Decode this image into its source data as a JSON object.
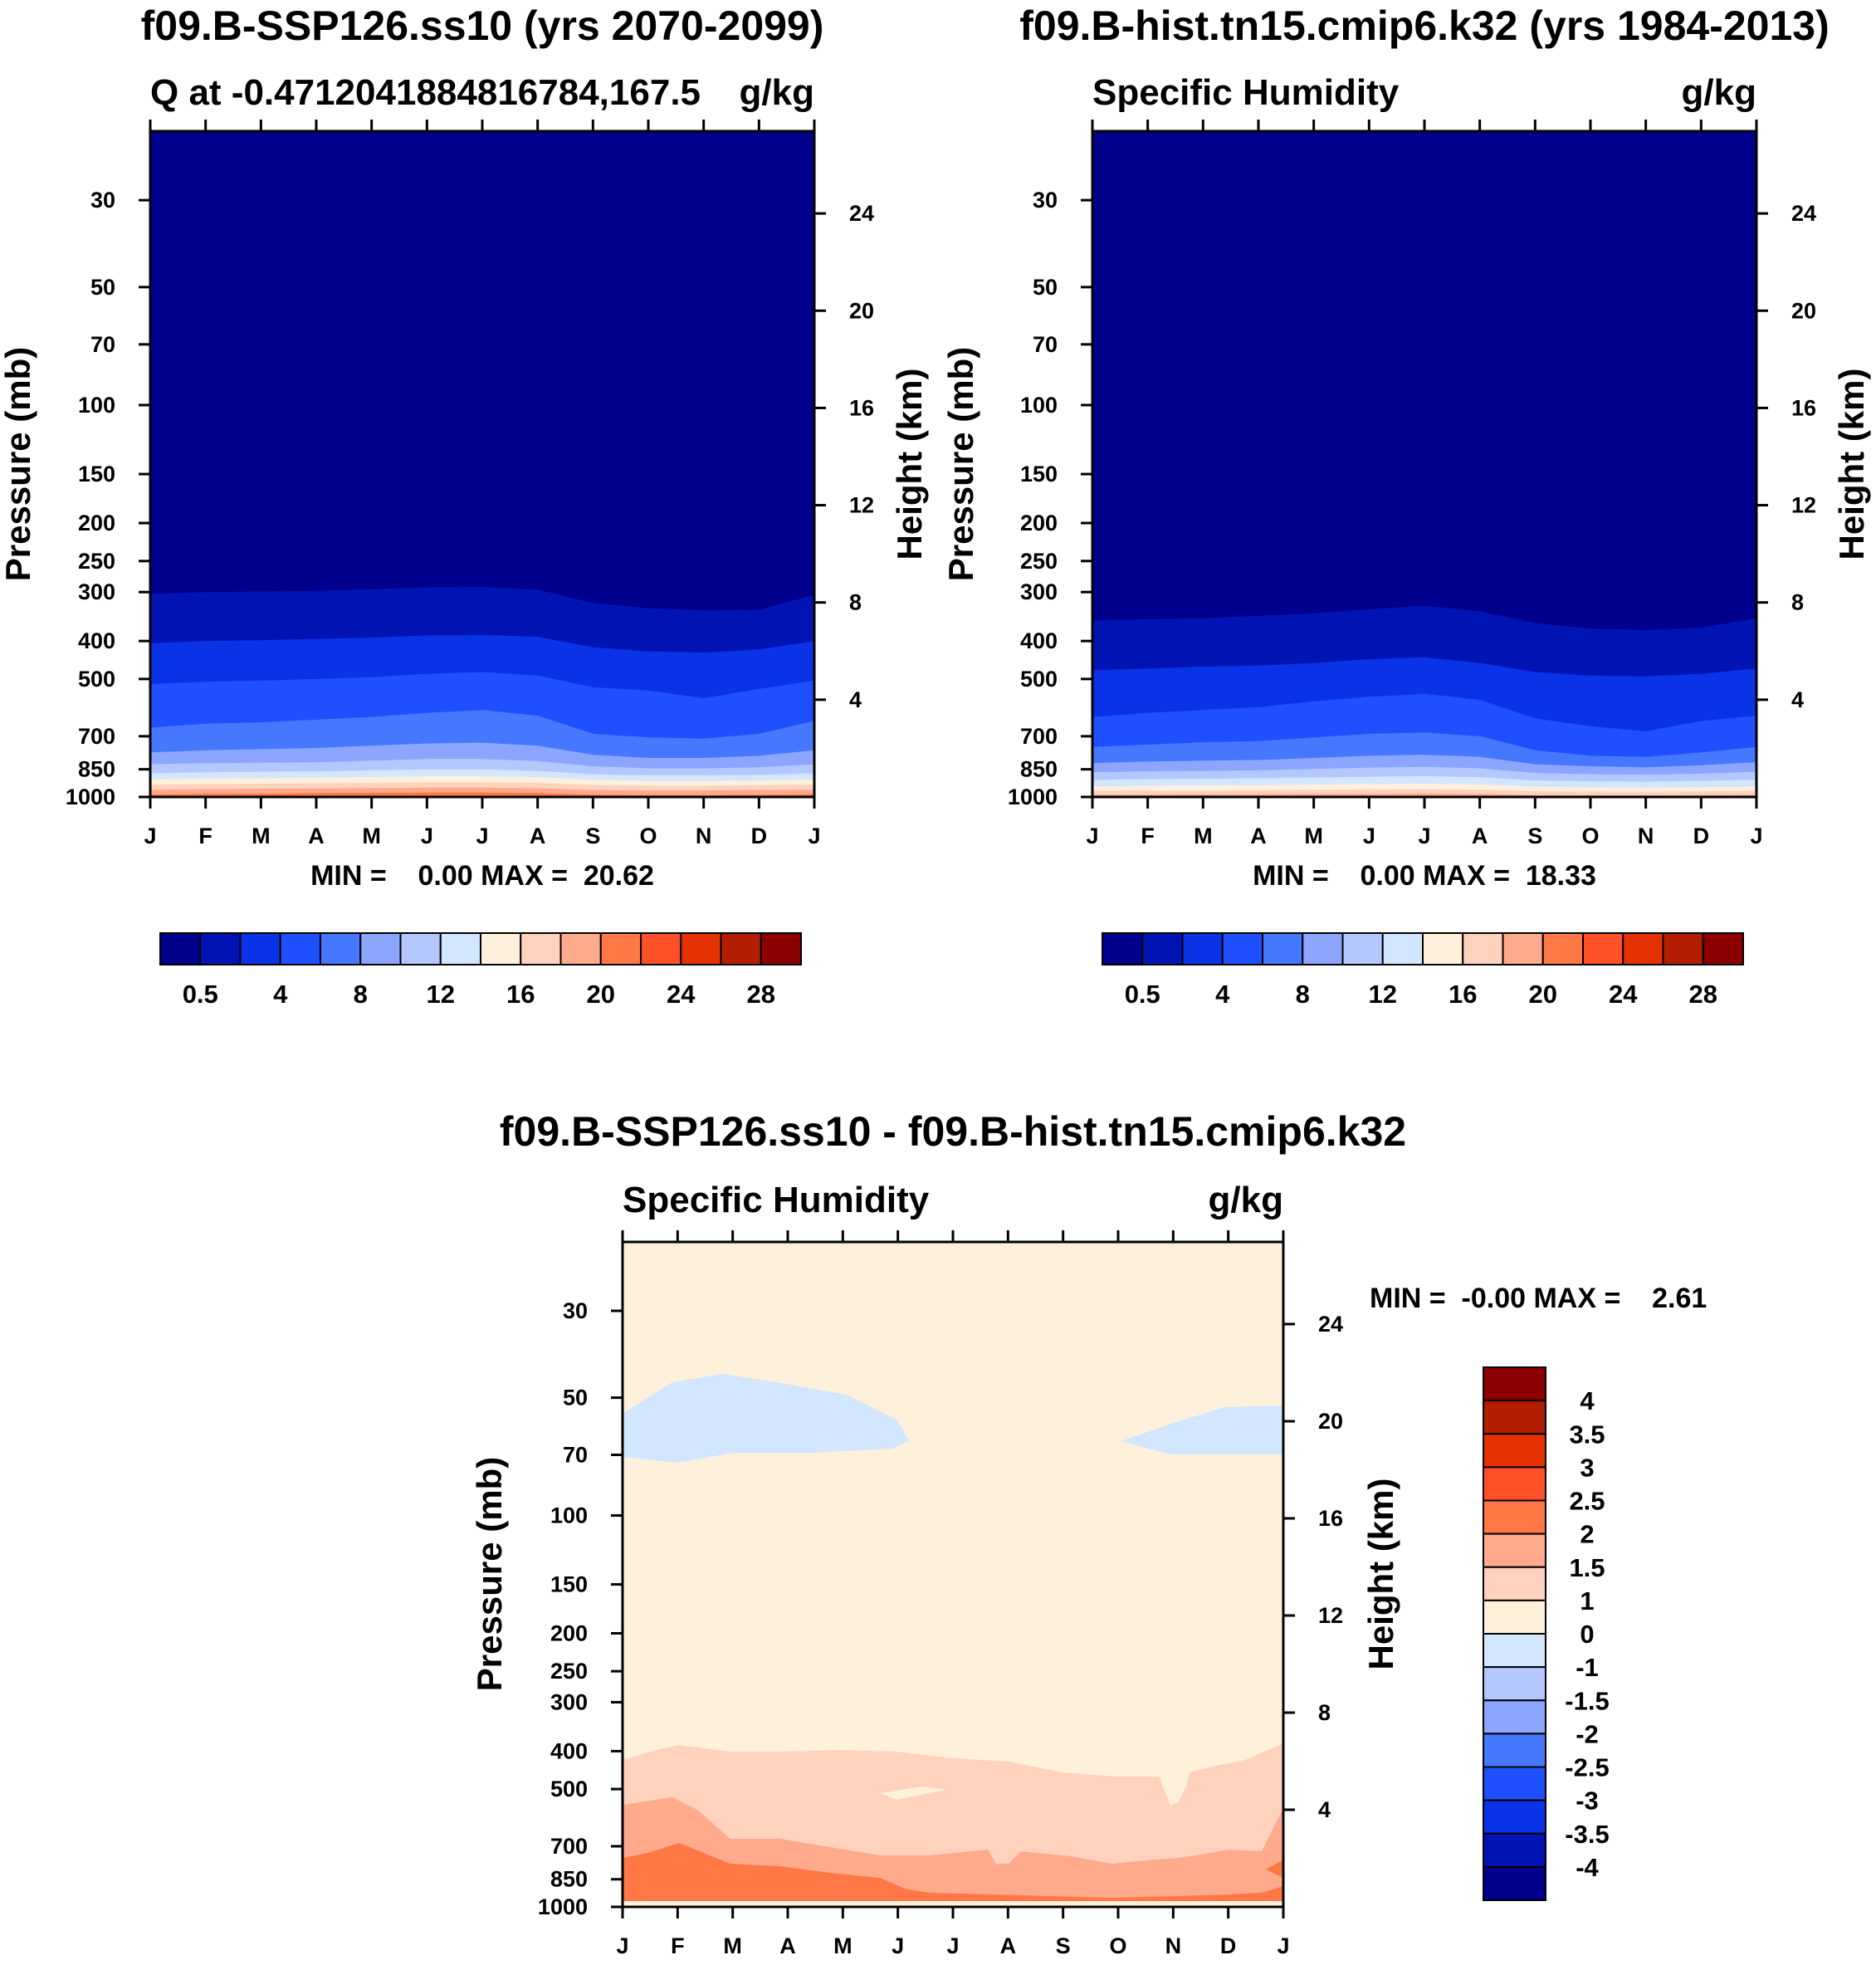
{
  "colors": {
    "abs_levels": [
      "#00008c",
      "#0014b4",
      "#0a32e6",
      "#1e50ff",
      "#4678ff",
      "#8ca5ff",
      "#b4c8ff",
      "#d2e6ff",
      "#fff0dc",
      "#ffd2be",
      "#ffaa8c",
      "#ff7846",
      "#ff5028",
      "#e63200",
      "#b41e00",
      "#8c0000"
    ],
    "diff_levels": [
      "#00008c",
      "#0014b4",
      "#0a32e6",
      "#1e50ff",
      "#4678ff",
      "#8ca5ff",
      "#b4c8ff",
      "#d2e6ff",
      "#fff0dc",
      "#ffd2be",
      "#ffaa8c",
      "#ff7846",
      "#ff5028",
      "#e63200",
      "#b41e00",
      "#8c0000"
    ]
  },
  "chart_data": [
    {
      "type": "contour",
      "title": "f09.B-SSP126.ss10 (yrs 2070-2099)",
      "subtitle_left": "Q at -0.4712041884816784,167.5",
      "subtitle_right": "g/kg",
      "xlabel": "",
      "ylabel": "Pressure (mb)",
      "ylabel_right": "Height (km)",
      "x_ticks": [
        "J",
        "F",
        "M",
        "A",
        "M",
        "J",
        "J",
        "A",
        "S",
        "O",
        "N",
        "D",
        "J"
      ],
      "y_ticks": [
        30,
        50,
        70,
        100,
        150,
        200,
        250,
        300,
        400,
        500,
        700,
        850,
        1000
      ],
      "y_ticks_right": [
        24,
        20,
        16,
        12,
        8,
        4
      ],
      "ylim": [
        20,
        1000
      ],
      "minmax_text": "MIN =    0.00 MAX =  20.62",
      "colorbar_labels": [
        "0.5",
        "4",
        "8",
        "12",
        "16",
        "20",
        "24",
        "28"
      ],
      "boundaries": [
        {
          "level": 1,
          "pressure": [
            303,
            300,
            299,
            298,
            295,
            292,
            291,
            296,
            320,
            330,
            334,
            333,
            305
          ]
        },
        {
          "level": 2,
          "pressure": [
            405,
            400,
            398,
            395,
            392,
            387,
            386,
            390,
            415,
            425,
            428,
            420,
            400
          ]
        },
        {
          "level": 3,
          "pressure": [
            515,
            508,
            505,
            500,
            495,
            485,
            480,
            490,
            525,
            535,
            560,
            530,
            505
          ]
        },
        {
          "level": 4,
          "pressure": [
            665,
            650,
            645,
            635,
            625,
            610,
            600,
            620,
            690,
            705,
            710,
            690,
            640
          ]
        },
        {
          "level": 5,
          "pressure": [
            770,
            760,
            755,
            750,
            740,
            730,
            727,
            740,
            780,
            795,
            795,
            785,
            760
          ]
        },
        {
          "level": 6,
          "pressure": [
            825,
            820,
            818,
            815,
            808,
            800,
            800,
            810,
            835,
            845,
            845,
            840,
            825
          ]
        },
        {
          "level": 7,
          "pressure": [
            870,
            865,
            862,
            860,
            855,
            850,
            850,
            858,
            875,
            880,
            880,
            878,
            870
          ]
        },
        {
          "level": 8,
          "pressure": [
            902,
            898,
            896,
            893,
            890,
            885,
            885,
            890,
            905,
            910,
            910,
            908,
            902
          ]
        },
        {
          "level": 9,
          "pressure": [
            930,
            927,
            925,
            922,
            920,
            917,
            917,
            920,
            932,
            935,
            935,
            933,
            930
          ]
        },
        {
          "level": 10,
          "pressure": [
            958,
            955,
            953,
            951,
            949,
            947,
            947,
            950,
            960,
            962,
            962,
            960,
            958
          ]
        },
        {
          "level": 11,
          "pressure": [
            985,
            982,
            980,
            978,
            976,
            974,
            974,
            977,
            987,
            990,
            990,
            988,
            985
          ]
        }
      ]
    },
    {
      "type": "contour",
      "title": "f09.B-hist.tn15.cmip6.k32 (yrs 1984-2013)",
      "subtitle_left": "Specific Humidity",
      "subtitle_right": "g/kg",
      "xlabel": "",
      "ylabel": "Pressure (mb)",
      "ylabel_right": "Height (km)",
      "x_ticks": [
        "J",
        "F",
        "M",
        "A",
        "M",
        "J",
        "J",
        "A",
        "S",
        "O",
        "N",
        "D",
        "J"
      ],
      "y_ticks": [
        30,
        50,
        70,
        100,
        150,
        200,
        250,
        300,
        400,
        500,
        700,
        850,
        1000
      ],
      "y_ticks_right": [
        24,
        20,
        16,
        12,
        8,
        4
      ],
      "ylim": [
        20,
        1000
      ],
      "minmax_text": "MIN =    0.00 MAX =  18.33",
      "colorbar_labels": [
        "0.5",
        "4",
        "8",
        "12",
        "16",
        "20",
        "24",
        "28"
      ],
      "boundaries": [
        {
          "level": 1,
          "pressure": [
            355,
            352,
            350,
            345,
            340,
            332,
            325,
            336,
            360,
            372,
            375,
            370,
            350
          ]
        },
        {
          "level": 2,
          "pressure": [
            475,
            470,
            465,
            462,
            455,
            445,
            440,
            455,
            480,
            490,
            492,
            485,
            470
          ]
        },
        {
          "level": 3,
          "pressure": [
            625,
            610,
            600,
            590,
            570,
            555,
            545,
            565,
            630,
            660,
            680,
            640,
            620
          ]
        },
        {
          "level": 4,
          "pressure": [
            745,
            735,
            725,
            720,
            705,
            690,
            685,
            700,
            760,
            785,
            790,
            770,
            745
          ]
        },
        {
          "level": 5,
          "pressure": [
            820,
            812,
            808,
            805,
            795,
            785,
            780,
            790,
            825,
            835,
            840,
            830,
            815
          ]
        },
        {
          "level": 6,
          "pressure": [
            865,
            860,
            858,
            855,
            848,
            842,
            838,
            845,
            868,
            875,
            878,
            872,
            862
          ]
        },
        {
          "level": 7,
          "pressure": [
            905,
            900,
            898,
            896,
            892,
            888,
            885,
            890,
            908,
            912,
            914,
            910,
            903
          ]
        },
        {
          "level": 8,
          "pressure": [
            940,
            937,
            935,
            933,
            930,
            927,
            925,
            929,
            942,
            945,
            946,
            944,
            940
          ]
        },
        {
          "level": 9,
          "pressure": [
            965,
            963,
            962,
            960,
            958,
            956,
            955,
            957,
            967,
            969,
            970,
            968,
            965
          ]
        },
        {
          "level": 10,
          "pressure": [
            988,
            986,
            985,
            984,
            982,
            981,
            980,
            982,
            989,
            991,
            991,
            990,
            988
          ]
        }
      ]
    },
    {
      "type": "contour",
      "title": "f09.B-SSP126.ss10 - f09.B-hist.tn15.cmip6.k32",
      "subtitle_left": "Specific Humidity",
      "subtitle_right": "g/kg",
      "xlabel": "",
      "ylabel": "Pressure (mb)",
      "ylabel_right": "Height (km)",
      "x_ticks": [
        "J",
        "F",
        "M",
        "A",
        "M",
        "J",
        "J",
        "A",
        "S",
        "O",
        "N",
        "D",
        "J"
      ],
      "y_ticks": [
        30,
        50,
        70,
        100,
        150,
        200,
        250,
        300,
        400,
        500,
        700,
        850,
        1000
      ],
      "y_ticks_right": [
        24,
        20,
        16,
        12,
        8,
        4
      ],
      "ylim": [
        20,
        1000
      ],
      "minmax_text": "MIN =  -0.00 MAX =    2.61",
      "colorbar_labels": [
        "4",
        "3.5",
        "3",
        "2.5",
        "2",
        "1.5",
        "1",
        "0",
        "-1",
        "-1.5",
        "-2",
        "-2.5",
        "-3",
        "-3.5",
        "-4"
      ],
      "regions": [
        {
          "name": "background",
          "value_range": [
            0,
            1
          ]
        },
        {
          "name": "negative-patch",
          "value_range": [
            -1,
            0
          ]
        },
        {
          "name": "band-1-1.5",
          "value_range": [
            1,
            1.5
          ]
        },
        {
          "name": "band-1.5-2",
          "value_range": [
            1.5,
            2
          ]
        },
        {
          "name": "band-2-2.5",
          "value_range": [
            2,
            2.5
          ]
        }
      ]
    }
  ]
}
